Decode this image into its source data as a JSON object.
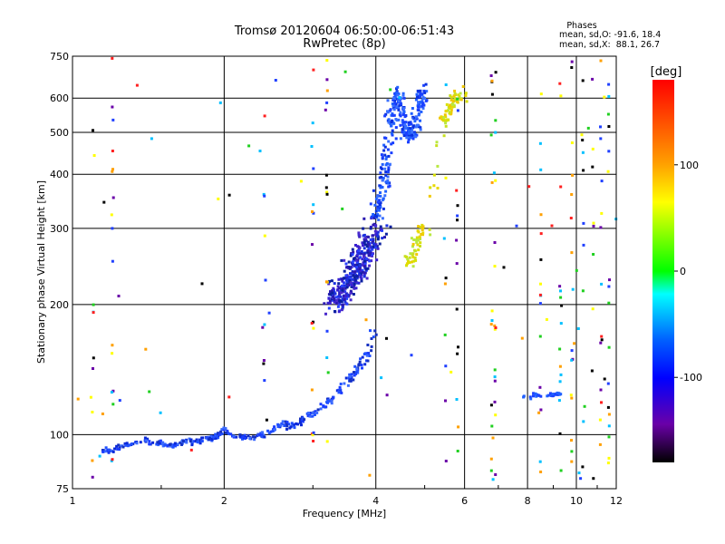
{
  "chart_data": {
    "type": "scatter",
    "title": "Tromsø 20120604 06:50:00-06:51:43",
    "subtitle": "RwPretec (8p)",
    "xlabel": "Frequency [MHz]",
    "ylabel": "Stationary phase Virtual Height [km]",
    "x_scale": "log",
    "y_scale": "log",
    "xlim": [
      1,
      12
    ],
    "ylim": [
      75,
      750
    ],
    "x_ticks": [
      1,
      2,
      4,
      6,
      8,
      10,
      12
    ],
    "y_ticks": [
      75,
      100,
      200,
      300,
      400,
      500,
      600,
      750
    ],
    "grid": true,
    "legend": {
      "title": "Phases",
      "lines": [
        "mean, sd,O: -91.6, 18.4",
        "mean, sd,X:  88.1, 26.7"
      ]
    },
    "colorbar": {
      "label": "[deg]",
      "range": [
        -180,
        180
      ],
      "ticks": [
        100,
        0,
        -100
      ],
      "colors": [
        "#ff0000",
        "#ffff00",
        "#00ff00",
        "#00ffff",
        "#0000ff",
        "#6a00a8",
        "#000000"
      ]
    },
    "series": [
      {
        "x": [
          1.15,
          1.2,
          1.25,
          1.3,
          1.35,
          1.4,
          1.45,
          1.5,
          1.55,
          1.6,
          1.65,
          1.7,
          1.75,
          1.8,
          1.85,
          1.9,
          1.95,
          2.0,
          2.1,
          2.2,
          2.3,
          2.4,
          2.5,
          2.6,
          2.7,
          2.8,
          2.9,
          3.0,
          3.1,
          3.2,
          3.3,
          3.4,
          3.5,
          3.6,
          3.7,
          3.8,
          3.9,
          4.0
        ],
        "y": [
          92,
          92,
          94,
          95,
          96,
          97,
          95,
          96,
          94,
          95,
          96,
          97,
          96,
          97,
          98,
          98,
          100,
          103,
          100,
          98,
          99,
          100,
          103,
          106,
          104,
          106,
          110,
          112,
          115,
          118,
          122,
          127,
          132,
          137,
          143,
          150,
          160,
          175
        ]
      },
      {
        "x": [
          3.3,
          3.4,
          3.5,
          3.6,
          3.7,
          3.8,
          3.9,
          4.0
        ],
        "y": [
          205,
          210,
          220,
          235,
          250,
          265,
          280,
          300
        ]
      },
      {
        "x": [
          4.0,
          4.1,
          4.2,
          4.25,
          4.3,
          4.4,
          4.5,
          4.6,
          4.7,
          4.8,
          4.9,
          5.0
        ],
        "y": [
          320,
          360,
          400,
          460,
          560,
          620,
          560,
          500,
          490,
          520,
          580,
          620
        ]
      },
      {
        "x": [
          4.6,
          4.7,
          4.8,
          4.9,
          5.0,
          5.4,
          5.5,
          5.6,
          5.7,
          5.8,
          5.9
        ],
        "y": [
          245,
          260,
          275,
          290,
          300,
          520,
          540,
          560,
          580,
          600,
          620
        ]
      },
      {
        "x": [
          7.8,
          8.3,
          8.6,
          9.0,
          9.3
        ],
        "y": [
          122,
          123,
          124,
          124,
          124
        ]
      }
    ]
  }
}
